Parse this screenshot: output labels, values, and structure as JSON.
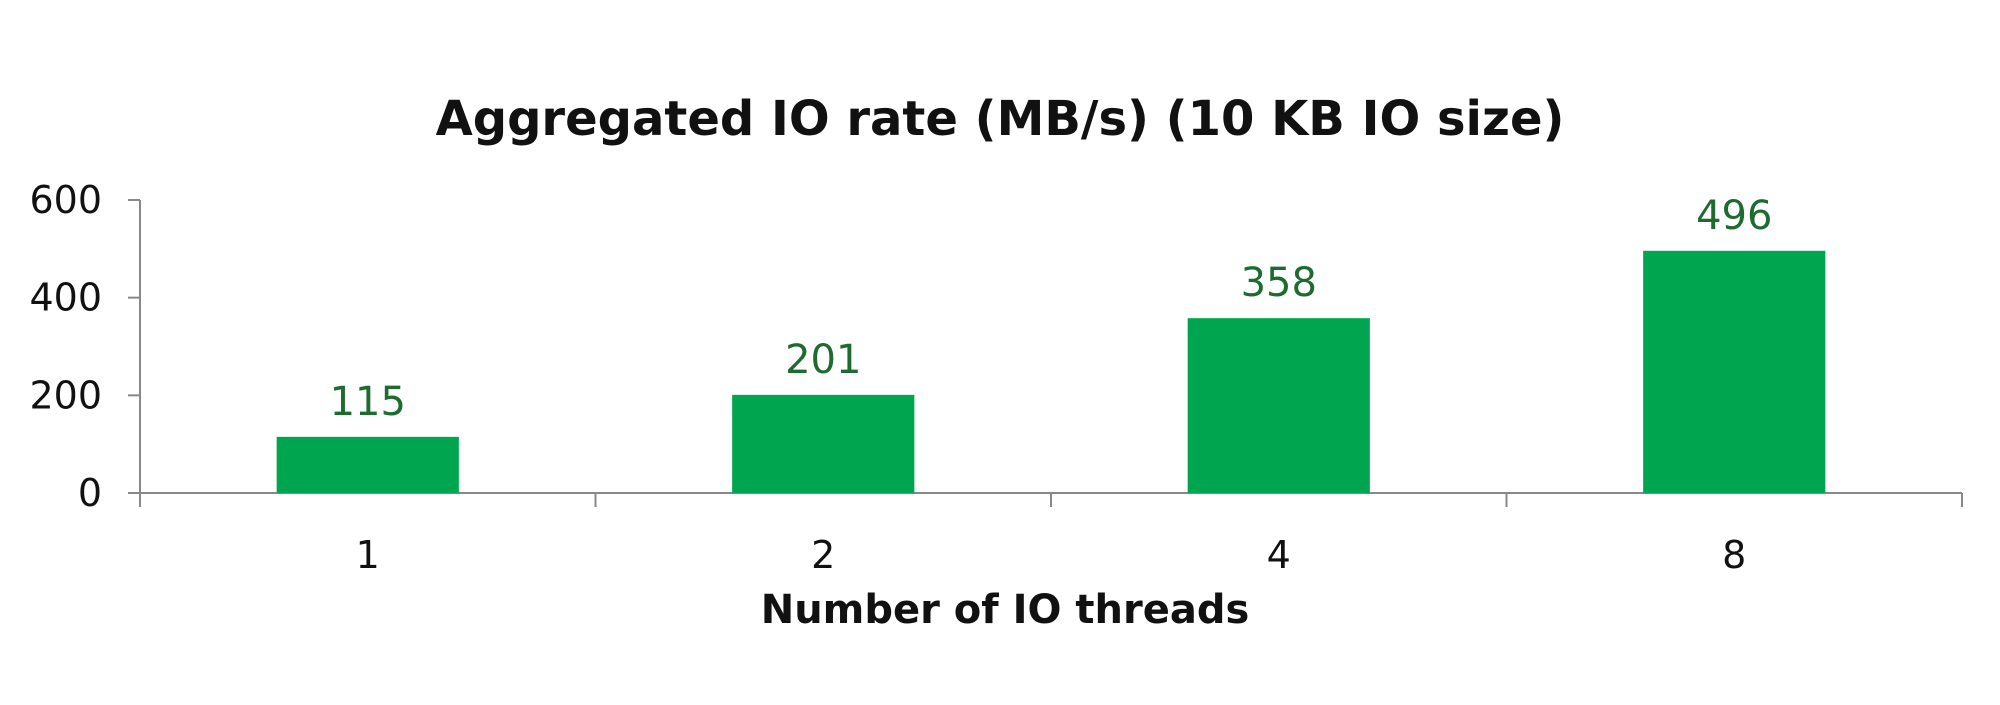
{
  "chart_data": {
    "type": "bar",
    "title": "Aggregated IO rate (MB/s)  (10 KB IO size)",
    "xlabel": "Number of IO threads",
    "ylabel": "",
    "categories": [
      "1",
      "2",
      "4",
      "8"
    ],
    "values": [
      115,
      201,
      358,
      496
    ],
    "data_labels": [
      "115",
      "201",
      "358",
      "496"
    ],
    "yticks": [
      "0",
      "200",
      "400",
      "600"
    ],
    "ylim": [
      0,
      600
    ],
    "grid": false,
    "legend": "none",
    "bar_color": "#00a64f",
    "label_color": "#1e6b30"
  }
}
